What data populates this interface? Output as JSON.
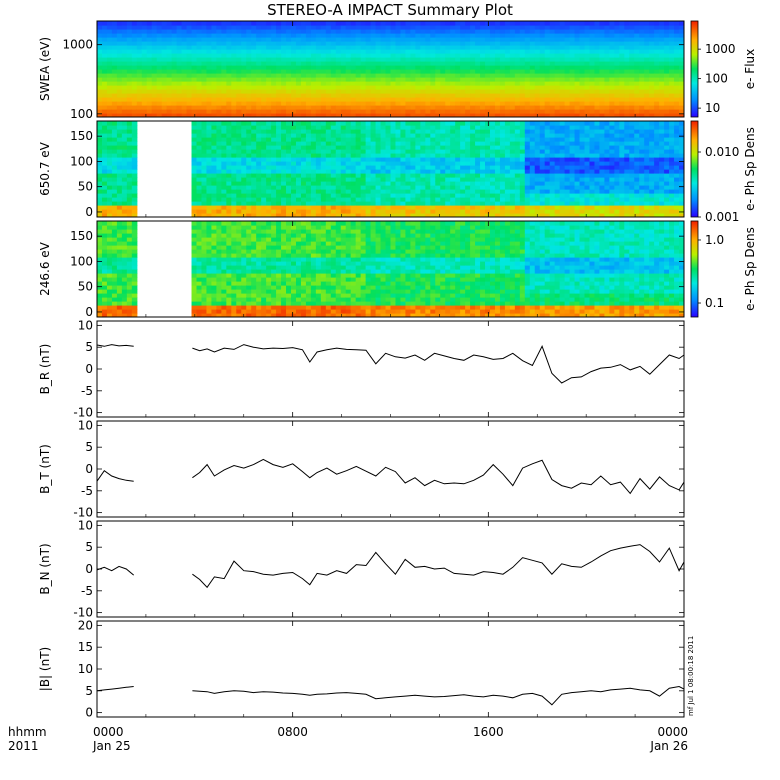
{
  "title": "STEREO-A IMPACT Summary Plot",
  "stamp": "mf Jul 1 08:00:18 2011",
  "time_axis": {
    "unit_label": "hhmm",
    "year_label": "2011",
    "ticks": [
      {
        "label": "0000",
        "date": "Jan 25",
        "hour": 0
      },
      {
        "label": "0800",
        "date": "",
        "hour": 8
      },
      {
        "label": "1600",
        "date": "",
        "hour": 16
      },
      {
        "label": "0000",
        "date": "Jan 26",
        "hour": 24
      }
    ],
    "range_hours": [
      0,
      24
    ]
  },
  "chart_data": [
    {
      "type": "heatmap",
      "ylabel": "SWEA (eV)",
      "yscale": "log",
      "ylim": [
        90,
        2200
      ],
      "yticks": [
        {
          "v": 100,
          "label": "100"
        },
        {
          "v": 1000,
          "label": "1000"
        }
      ],
      "colorbar": {
        "label": "e- Flux",
        "scale": "log",
        "range": [
          5,
          9000
        ],
        "ticks": [
          {
            "v": 10,
            "label": "10"
          },
          {
            "v": 100,
            "label": "100"
          },
          {
            "v": 1000,
            "label": "1000"
          }
        ]
      },
      "data_gaps_hours": []
    },
    {
      "type": "heatmap",
      "ylabel": "650.7 eV",
      "yscale": "linear",
      "ylim": [
        -10,
        180
      ],
      "yticks": [
        {
          "v": 0,
          "label": "0"
        },
        {
          "v": 50,
          "label": "50"
        },
        {
          "v": 100,
          "label": "100"
        },
        {
          "v": 150,
          "label": "150"
        }
      ],
      "colorbar": {
        "label": "e- Ph Sp Dens",
        "scale": "log",
        "range": [
          0.001,
          0.03
        ],
        "ticks": [
          {
            "v": 0.001,
            "label": "0.001"
          },
          {
            "v": 0.01,
            "label": "0.010"
          }
        ]
      },
      "data_gaps_hours": [
        [
          1.55,
          3.9
        ]
      ]
    },
    {
      "type": "heatmap",
      "ylabel": "246.6 eV",
      "yscale": "linear",
      "ylim": [
        -10,
        180
      ],
      "yticks": [
        {
          "v": 0,
          "label": "0"
        },
        {
          "v": 50,
          "label": "50"
        },
        {
          "v": 100,
          "label": "100"
        },
        {
          "v": 150,
          "label": "150"
        }
      ],
      "colorbar": {
        "label": "e- Ph Sp Dens",
        "scale": "log",
        "range": [
          0.06,
          2.0
        ],
        "ticks": [
          {
            "v": 0.1,
            "label": "0.1"
          },
          {
            "v": 1.0,
            "label": "1.0"
          }
        ]
      },
      "data_gaps_hours": [
        [
          1.55,
          3.9
        ]
      ]
    },
    {
      "type": "line",
      "ylabel": "B_R (nT)",
      "ylim": [
        -11,
        11
      ],
      "yticks": [
        -10,
        -5,
        0,
        5,
        10
      ],
      "segments": [
        {
          "x": [
            0,
            0.3,
            0.6,
            0.9,
            1.2,
            1.5
          ],
          "y": [
            5.5,
            5.2,
            5.6,
            5.3,
            5.4,
            5.2
          ]
        },
        {
          "x": [
            3.9,
            4.2,
            4.5,
            4.8,
            5.2,
            5.6,
            6.0,
            6.4,
            6.8,
            7.2,
            7.6,
            8.0,
            8.4,
            8.7,
            9.0,
            9.4,
            9.8,
            10.2,
            10.6,
            11.0,
            11.4,
            11.8,
            12.2,
            12.6,
            13.0,
            13.4,
            13.8,
            14.2,
            14.6,
            15.0,
            15.4,
            15.8,
            16.2,
            16.6,
            17.0,
            17.4,
            17.8,
            18.2,
            18.6,
            19.0,
            19.4,
            19.8,
            20.2,
            20.6,
            21.0,
            21.4,
            21.8,
            22.2,
            22.6,
            23.0,
            23.4,
            23.8,
            24.0
          ],
          "y": [
            4.8,
            4.2,
            4.6,
            3.9,
            4.8,
            4.5,
            5.6,
            5.0,
            4.6,
            4.8,
            4.7,
            4.9,
            4.4,
            1.6,
            3.9,
            4.4,
            4.8,
            4.5,
            4.4,
            4.3,
            1.2,
            3.6,
            2.8,
            2.5,
            3.2,
            2.0,
            3.6,
            3.0,
            2.4,
            2.0,
            3.2,
            2.8,
            2.2,
            2.4,
            3.6,
            1.9,
            0.8,
            5.2,
            -1.0,
            -3.2,
            -2.0,
            -1.8,
            -0.6,
            0.2,
            0.4,
            1.0,
            -0.2,
            0.6,
            -1.2,
            1.0,
            3.2,
            2.4,
            3.2
          ]
        }
      ]
    },
    {
      "type": "line",
      "ylabel": "B_T (nT)",
      "ylim": [
        -11,
        11
      ],
      "yticks": [
        -10,
        -5,
        0,
        5,
        10
      ],
      "segments": [
        {
          "x": [
            0,
            0.3,
            0.6,
            0.9,
            1.2,
            1.5
          ],
          "y": [
            -2.8,
            -0.4,
            -1.6,
            -2.2,
            -2.6,
            -2.8
          ]
        },
        {
          "x": [
            3.9,
            4.2,
            4.5,
            4.8,
            5.2,
            5.6,
            6.0,
            6.4,
            6.8,
            7.2,
            7.6,
            8.0,
            8.4,
            8.7,
            9.0,
            9.4,
            9.8,
            10.2,
            10.6,
            11.0,
            11.4,
            11.8,
            12.2,
            12.6,
            13.0,
            13.4,
            13.8,
            14.2,
            14.6,
            15.0,
            15.4,
            15.8,
            16.2,
            16.6,
            17.0,
            17.4,
            17.8,
            18.2,
            18.6,
            19.0,
            19.4,
            19.8,
            20.2,
            20.6,
            21.0,
            21.4,
            21.8,
            22.2,
            22.6,
            23.0,
            23.4,
            23.8,
            24.0
          ],
          "y": [
            -2.0,
            -0.8,
            1.0,
            -1.6,
            -0.2,
            0.8,
            0.2,
            1.0,
            2.2,
            1.0,
            0.4,
            1.2,
            -0.6,
            -2.0,
            -0.8,
            0.2,
            -1.2,
            -0.4,
            0.6,
            -0.5,
            -1.6,
            0.4,
            -0.6,
            -3.2,
            -2.0,
            -3.8,
            -2.6,
            -3.4,
            -3.2,
            -3.4,
            -2.6,
            -1.4,
            1.0,
            -1.2,
            -3.8,
            0.2,
            1.2,
            2.0,
            -2.4,
            -3.8,
            -4.4,
            -3.2,
            -3.6,
            -1.6,
            -3.6,
            -3.0,
            -5.6,
            -2.2,
            -4.6,
            -1.8,
            -3.8,
            -4.8,
            -3.0
          ]
        }
      ]
    },
    {
      "type": "line",
      "ylabel": "B_N (nT)",
      "ylim": [
        -11,
        11
      ],
      "yticks": [
        -10,
        -5,
        0,
        5,
        10
      ],
      "segments": [
        {
          "x": [
            0,
            0.3,
            0.6,
            0.9,
            1.2,
            1.5
          ],
          "y": [
            -0.2,
            0.4,
            -0.4,
            0.6,
            0.0,
            -1.4
          ]
        },
        {
          "x": [
            3.9,
            4.2,
            4.5,
            4.8,
            5.2,
            5.6,
            6.0,
            6.4,
            6.8,
            7.2,
            7.6,
            8.0,
            8.4,
            8.7,
            9.0,
            9.4,
            9.8,
            10.2,
            10.6,
            11.0,
            11.4,
            11.8,
            12.2,
            12.6,
            13.0,
            13.4,
            13.8,
            14.2,
            14.6,
            15.0,
            15.4,
            15.8,
            16.2,
            16.6,
            17.0,
            17.4,
            17.8,
            18.2,
            18.6,
            19.0,
            19.4,
            19.8,
            20.2,
            20.6,
            21.0,
            21.4,
            21.8,
            22.2,
            22.6,
            23.0,
            23.4,
            23.8,
            24.0
          ],
          "y": [
            -1.2,
            -2.4,
            -4.2,
            -1.8,
            -2.2,
            1.8,
            -0.4,
            -0.6,
            -1.2,
            -1.4,
            -1.0,
            -0.8,
            -2.2,
            -3.6,
            -1.0,
            -1.4,
            -0.4,
            -1.0,
            1.0,
            0.8,
            3.8,
            1.2,
            -1.2,
            2.2,
            0.4,
            0.6,
            0.0,
            0.2,
            -1.0,
            -1.2,
            -1.4,
            -0.6,
            -0.8,
            -1.2,
            0.4,
            2.6,
            2.0,
            1.4,
            -1.2,
            1.2,
            0.6,
            0.4,
            1.6,
            3.0,
            4.2,
            4.8,
            5.2,
            5.6,
            4.0,
            1.6,
            4.8,
            -0.4,
            1.6
          ]
        }
      ]
    },
    {
      "type": "line",
      "ylabel": "|B| (nT)",
      "ylim": [
        -1,
        21
      ],
      "yticks": [
        0,
        5,
        10,
        15,
        20
      ],
      "segments": [
        {
          "x": [
            0,
            0.3,
            0.6,
            0.9,
            1.2,
            1.5
          ],
          "y": [
            5.0,
            5.2,
            5.4,
            5.6,
            5.8,
            6.0
          ]
        },
        {
          "x": [
            3.9,
            4.2,
            4.5,
            4.8,
            5.2,
            5.6,
            6.0,
            6.4,
            6.8,
            7.2,
            7.6,
            8.0,
            8.4,
            8.7,
            9.0,
            9.4,
            9.8,
            10.2,
            10.6,
            11.0,
            11.4,
            11.8,
            12.2,
            12.6,
            13.0,
            13.4,
            13.8,
            14.2,
            14.6,
            15.0,
            15.4,
            15.8,
            16.2,
            16.6,
            17.0,
            17.4,
            17.8,
            18.2,
            18.6,
            19.0,
            19.4,
            19.8,
            20.2,
            20.6,
            21.0,
            21.4,
            21.8,
            22.2,
            22.6,
            23.0,
            23.4,
            23.8,
            24.0
          ],
          "y": [
            5.0,
            4.9,
            4.8,
            4.4,
            4.8,
            5.0,
            4.9,
            4.6,
            4.8,
            4.7,
            4.5,
            4.4,
            4.2,
            4.0,
            4.2,
            4.3,
            4.5,
            4.6,
            4.4,
            4.2,
            3.2,
            3.4,
            3.6,
            3.8,
            4.0,
            3.8,
            3.6,
            3.7,
            3.9,
            4.1,
            3.8,
            3.6,
            4.0,
            3.8,
            3.4,
            4.2,
            4.4,
            3.8,
            1.8,
            4.2,
            4.6,
            4.8,
            5.0,
            4.8,
            5.2,
            5.4,
            5.6,
            5.2,
            5.0,
            3.8,
            5.6,
            6.0,
            5.4
          ]
        }
      ]
    }
  ]
}
